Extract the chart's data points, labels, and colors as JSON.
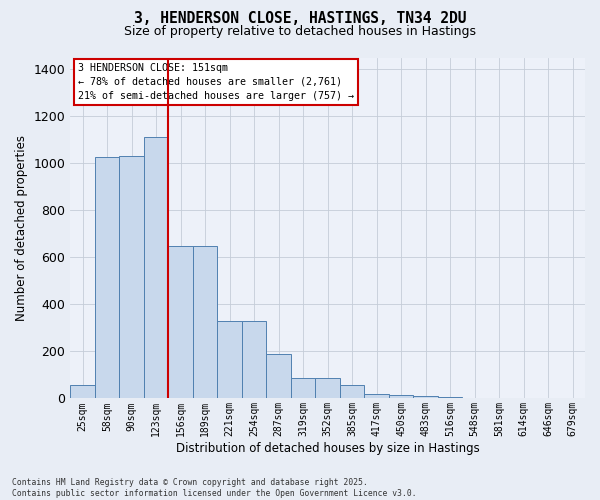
{
  "title": "3, HENDERSON CLOSE, HASTINGS, TN34 2DU",
  "subtitle": "Size of property relative to detached houses in Hastings",
  "xlabel": "Distribution of detached houses by size in Hastings",
  "ylabel": "Number of detached properties",
  "bar_labels": [
    "25sqm",
    "58sqm",
    "90sqm",
    "123sqm",
    "156sqm",
    "189sqm",
    "221sqm",
    "254sqm",
    "287sqm",
    "319sqm",
    "352sqm",
    "385sqm",
    "417sqm",
    "450sqm",
    "483sqm",
    "516sqm",
    "548sqm",
    "581sqm",
    "614sqm",
    "646sqm",
    "679sqm"
  ],
  "bar_values": [
    55,
    1025,
    1030,
    1110,
    650,
    650,
    330,
    330,
    190,
    85,
    85,
    55,
    20,
    15,
    10,
    5,
    0,
    0,
    0,
    0,
    0
  ],
  "bar_color": "#c8d8ec",
  "bar_edgecolor": "#5080b0",
  "vline_pos": 3.5,
  "vline_color": "#cc0000",
  "ylim": [
    0,
    1450
  ],
  "yticks": [
    0,
    200,
    400,
    600,
    800,
    1000,
    1200,
    1400
  ],
  "annotation_text": "3 HENDERSON CLOSE: 151sqm\n← 78% of detached houses are smaller (2,761)\n21% of semi-detached houses are larger (757) →",
  "footer": "Contains HM Land Registry data © Crown copyright and database right 2025.\nContains public sector information licensed under the Open Government Licence v3.0.",
  "bg_color": "#e8edf5",
  "plot_bg_color": "#edf1f9",
  "grid_color": "#c5cdd8"
}
